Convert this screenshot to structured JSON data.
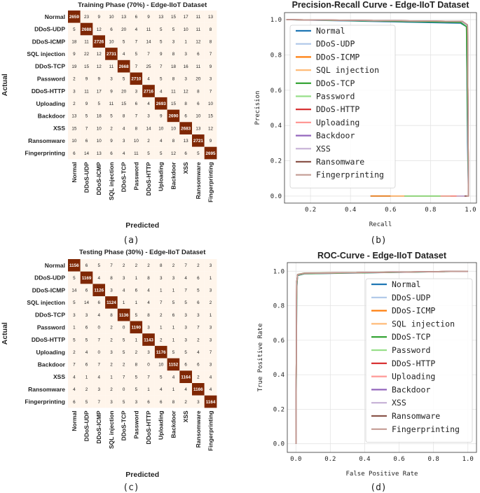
{
  "colors": {
    "diag": "#7f2704",
    "offdiag": "#fff5eb",
    "grid": "#e4e4e4"
  },
  "subcaptions": [
    "(a)",
    "(b)",
    "(c)",
    "(d)"
  ],
  "chart_data": [
    {
      "type": "heatmap",
      "title": "Training Phase (70%) - Edge-IIoT Dataset",
      "xlabel": "Predicted",
      "ylabel": "Actual",
      "labels": [
        "Normal",
        "DDoS-UDP",
        "DDoS-ICMP",
        "SQL injection",
        "DDoS-TCP",
        "Password",
        "DDoS-HTTP",
        "Uploading",
        "Backdoor",
        "XSS",
        "Ransomware",
        "Fingerprinting"
      ],
      "matrix": [
        [
          2659,
          23,
          9,
          10,
          13,
          6,
          9,
          13,
          15,
          17,
          11,
          13
        ],
        [
          5,
          2688,
          12,
          6,
          20,
          4,
          11,
          5,
          5,
          10,
          11,
          8
        ],
        [
          18,
          11,
          2726,
          10,
          5,
          7,
          14,
          5,
          3,
          1,
          12,
          8
        ],
        [
          9,
          22,
          12,
          2731,
          4,
          5,
          7,
          9,
          8,
          3,
          6,
          7
        ],
        [
          19,
          15,
          12,
          11,
          2668,
          7,
          25,
          7,
          18,
          16,
          11,
          9
        ],
        [
          2,
          9,
          9,
          3,
          5,
          2710,
          4,
          5,
          8,
          3,
          20,
          3
        ],
        [
          3,
          11,
          17,
          9,
          20,
          3,
          2716,
          4,
          11,
          12,
          8,
          7
        ],
        [
          2,
          9,
          5,
          11,
          15,
          6,
          4,
          2693,
          15,
          8,
          6,
          10
        ],
        [
          13,
          5,
          18,
          5,
          8,
          7,
          3,
          9,
          2690,
          6,
          10,
          15
        ],
        [
          15,
          7,
          10,
          2,
          4,
          8,
          14,
          10,
          10,
          2683,
          13,
          12
        ],
        [
          10,
          6,
          10,
          9,
          3,
          10,
          2,
          4,
          8,
          13,
          2721,
          9
        ],
        [
          6,
          14,
          13,
          6,
          4,
          11,
          5,
          5,
          12,
          6,
          5,
          2695
        ]
      ]
    },
    {
      "type": "line",
      "title": "Precision-Recall Curve - Edge-IIoT Dataset",
      "xlabel": "Recall",
      "ylabel": "Precision",
      "xlim": [
        0.07,
        1.03
      ],
      "ylim": [
        -0.04,
        1.04
      ],
      "xticks": [
        "0.2",
        "0.4",
        "0.6",
        "0.8",
        "1.0"
      ],
      "yticks": [
        "0.0",
        "0.2",
        "0.4",
        "0.6",
        "0.8",
        "1.0"
      ],
      "series": [
        {
          "name": "Normal",
          "color": "#1f77b4",
          "points": [
            [
              0.08,
              1.0
            ],
            [
              0.95,
              0.98
            ],
            [
              0.98,
              0.96
            ],
            [
              0.985,
              0.3
            ],
            [
              0.99,
              0.0
            ],
            [
              0.5,
              0.0
            ]
          ]
        },
        {
          "name": "DDoS-UDP",
          "color": "#aec7e8",
          "points": [
            [
              0.08,
              1.0
            ],
            [
              0.96,
              0.985
            ],
            [
              0.98,
              0.97
            ],
            [
              0.99,
              0.05
            ],
            [
              0.99,
              0.0
            ],
            [
              0.6,
              0.0
            ]
          ]
        },
        {
          "name": "DDoS-ICMP",
          "color": "#ff7f0e",
          "points": [
            [
              0.08,
              1.0
            ],
            [
              0.96,
              0.99
            ],
            [
              0.985,
              0.97
            ],
            [
              0.99,
              0.0
            ],
            [
              0.5,
              0.0
            ]
          ]
        },
        {
          "name": "SQL injection",
          "color": "#ffbb78",
          "points": [
            [
              0.08,
              1.0
            ],
            [
              0.96,
              0.99
            ],
            [
              0.985,
              0.97
            ],
            [
              0.99,
              0.0
            ],
            [
              0.6,
              0.0
            ]
          ]
        },
        {
          "name": "DDoS-TCP",
          "color": "#2ca02c",
          "points": [
            [
              0.08,
              1.0
            ],
            [
              0.95,
              0.985
            ],
            [
              0.98,
              0.96
            ],
            [
              0.99,
              0.0
            ],
            [
              0.67,
              0.0
            ]
          ]
        },
        {
          "name": "Password",
          "color": "#98df8a",
          "points": [
            [
              0.08,
              1.0
            ],
            [
              0.96,
              0.99
            ],
            [
              0.985,
              0.97
            ],
            [
              0.99,
              0.0
            ],
            [
              0.67,
              0.0
            ]
          ]
        },
        {
          "name": "DDoS-HTTP",
          "color": "#d62728",
          "points": [
            [
              0.08,
              1.0
            ],
            [
              0.96,
              0.99
            ],
            [
              0.985,
              0.97
            ],
            [
              0.99,
              0.02
            ],
            [
              0.99,
              0.0
            ],
            [
              0.9,
              0.0
            ]
          ]
        },
        {
          "name": "Uploading",
          "color": "#ff9896",
          "points": [
            [
              0.08,
              1.0
            ],
            [
              0.96,
              0.99
            ],
            [
              0.985,
              0.97
            ],
            [
              0.99,
              0.0
            ],
            [
              0.85,
              0.0
            ]
          ]
        },
        {
          "name": "Backdoor",
          "color": "#9467bd",
          "points": [
            [
              0.08,
              1.0
            ],
            [
              0.96,
              0.99
            ],
            [
              0.985,
              0.97
            ],
            [
              0.99,
              0.0
            ],
            [
              0.95,
              0.0
            ]
          ]
        },
        {
          "name": "XSS",
          "color": "#c5b0d5",
          "points": [
            [
              0.08,
              1.0
            ],
            [
              0.96,
              0.99
            ],
            [
              0.985,
              0.97
            ],
            [
              0.99,
              0.0
            ],
            [
              0.93,
              0.0
            ]
          ]
        },
        {
          "name": "Ransomware",
          "color": "#8c564b",
          "points": [
            [
              0.08,
              1.0
            ],
            [
              0.96,
              0.99
            ],
            [
              0.985,
              0.97
            ],
            [
              0.99,
              0.0
            ],
            [
              0.97,
              0.0
            ]
          ]
        },
        {
          "name": "Fingerprinting",
          "color": "#c49c94",
          "points": [
            [
              0.08,
              1.0
            ],
            [
              0.96,
              0.99
            ],
            [
              0.985,
              0.97
            ],
            [
              0.99,
              0.0
            ],
            [
              0.98,
              0.0
            ]
          ]
        }
      ]
    },
    {
      "type": "heatmap",
      "title": "Testing Phase (30%) - Edge-IIoT Dataset",
      "xlabel": "Predicted",
      "ylabel": "Actual",
      "labels": [
        "Normal",
        "DDoS-UDP",
        "DDoS-ICMP",
        "SQL injection",
        "DDoS-TCP",
        "Password",
        "DDoS-HTTP",
        "Uploading",
        "Backdoor",
        "XSS",
        "Ransomware",
        "Fingerprinting"
      ],
      "matrix": [
        [
          1156,
          6,
          5,
          7,
          2,
          2,
          2,
          8,
          2,
          7,
          2,
          3
        ],
        [
          5,
          1169,
          4,
          8,
          3,
          1,
          8,
          3,
          3,
          4,
          6,
          1
        ],
        [
          14,
          6,
          1126,
          3,
          4,
          6,
          4,
          1,
          1,
          7,
          5,
          3
        ],
        [
          5,
          14,
          6,
          1124,
          1,
          1,
          4,
          7,
          5,
          5,
          6,
          2
        ],
        [
          3,
          3,
          4,
          8,
          1136,
          5,
          8,
          2,
          6,
          3,
          3,
          1
        ],
        [
          1,
          6,
          0,
          2,
          0,
          1190,
          3,
          1,
          1,
          3,
          7,
          3
        ],
        [
          5,
          5,
          7,
          2,
          5,
          1,
          1143,
          2,
          1,
          3,
          2,
          3
        ],
        [
          2,
          4,
          0,
          3,
          5,
          2,
          3,
          1176,
          5,
          5,
          4,
          7
        ],
        [
          7,
          6,
          7,
          2,
          2,
          8,
          0,
          10,
          1152,
          6,
          6,
          3
        ],
        [
          4,
          1,
          4,
          1,
          7,
          5,
          7,
          5,
          4,
          1164,
          2,
          4
        ],
        [
          4,
          2,
          3,
          2,
          0,
          5,
          1,
          4,
          1,
          4,
          1166,
          4
        ],
        [
          6,
          5,
          7,
          3,
          5,
          3,
          6,
          6,
          8,
          2,
          3,
          1164
        ]
      ]
    },
    {
      "type": "line",
      "title": "ROC-Curve - Edge-IIoT Dataset",
      "xlabel": "False Positive Rate",
      "ylabel": "True Positive Rate",
      "xlim": [
        -0.05,
        1.05
      ],
      "ylim": [
        -0.05,
        1.05
      ],
      "xticks": [
        "0.0",
        "0.2",
        "0.4",
        "0.6",
        "0.8",
        "1.0"
      ],
      "yticks": [
        "0.0",
        "0.2",
        "0.4",
        "0.6",
        "0.8",
        "1.0"
      ],
      "series": [
        {
          "name": "Normal",
          "color": "#1f77b4",
          "points": [
            [
              0,
              0
            ],
            [
              0.005,
              0.9
            ],
            [
              0.01,
              0.975
            ],
            [
              0.05,
              0.985
            ],
            [
              1,
              1
            ]
          ]
        },
        {
          "name": "DDoS-UDP",
          "color": "#aec7e8",
          "points": [
            [
              0,
              0
            ],
            [
              0.004,
              0.92
            ],
            [
              0.01,
              0.98
            ],
            [
              0.05,
              0.988
            ],
            [
              1,
              1
            ]
          ]
        },
        {
          "name": "DDoS-ICMP",
          "color": "#ff7f0e",
          "points": [
            [
              0,
              0
            ],
            [
              0.004,
              0.92
            ],
            [
              0.01,
              0.978
            ],
            [
              0.05,
              0.987
            ],
            [
              1,
              1
            ]
          ]
        },
        {
          "name": "SQL injection",
          "color": "#ffbb78",
          "points": [
            [
              0,
              0
            ],
            [
              0.004,
              0.93
            ],
            [
              0.01,
              0.98
            ],
            [
              0.05,
              0.988
            ],
            [
              1,
              1
            ]
          ]
        },
        {
          "name": "DDoS-TCP",
          "color": "#2ca02c",
          "points": [
            [
              0,
              0
            ],
            [
              0.005,
              0.91
            ],
            [
              0.01,
              0.977
            ],
            [
              0.05,
              0.986
            ],
            [
              1,
              1
            ]
          ]
        },
        {
          "name": "Password",
          "color": "#98df8a",
          "points": [
            [
              0,
              0
            ],
            [
              0.004,
              0.93
            ],
            [
              0.01,
              0.982
            ],
            [
              0.05,
              0.99
            ],
            [
              1,
              1
            ]
          ]
        },
        {
          "name": "DDoS-HTTP",
          "color": "#d62728",
          "points": [
            [
              0,
              0
            ],
            [
              0.004,
              0.93
            ],
            [
              0.01,
              0.98
            ],
            [
              0.05,
              0.988
            ],
            [
              1,
              1
            ]
          ]
        },
        {
          "name": "Uploading",
          "color": "#ff9896",
          "points": [
            [
              0,
              0
            ],
            [
              0.004,
              0.93
            ],
            [
              0.01,
              0.98
            ],
            [
              0.05,
              0.989
            ],
            [
              1,
              1
            ]
          ]
        },
        {
          "name": "Backdoor",
          "color": "#9467bd",
          "points": [
            [
              0,
              0
            ],
            [
              0.004,
              0.93
            ],
            [
              0.01,
              0.98
            ],
            [
              0.05,
              0.988
            ],
            [
              1,
              1
            ]
          ]
        },
        {
          "name": "XSS",
          "color": "#c5b0d5",
          "points": [
            [
              0,
              0
            ],
            [
              0.004,
              0.93
            ],
            [
              0.01,
              0.98
            ],
            [
              0.05,
              0.988
            ],
            [
              1,
              1
            ]
          ]
        },
        {
          "name": "Ransomware",
          "color": "#8c564b",
          "points": [
            [
              0,
              0
            ],
            [
              0.004,
              0.93
            ],
            [
              0.01,
              0.981
            ],
            [
              0.05,
              0.989
            ],
            [
              1,
              1
            ]
          ]
        },
        {
          "name": "Fingerprinting",
          "color": "#c49c94",
          "points": [
            [
              0,
              0
            ],
            [
              0.004,
              0.93
            ],
            [
              0.01,
              0.98
            ],
            [
              0.05,
              0.988
            ],
            [
              1,
              1
            ]
          ]
        }
      ]
    }
  ]
}
